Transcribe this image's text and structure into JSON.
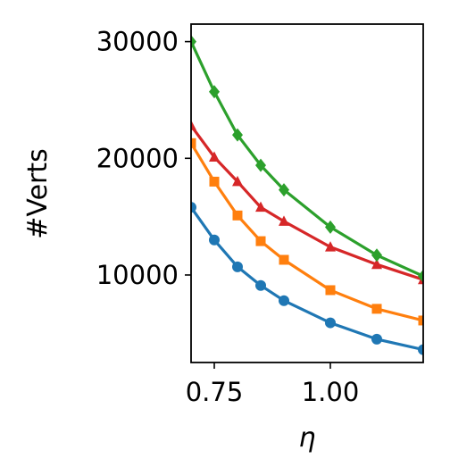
{
  "chart_data": {
    "type": "line",
    "title": "",
    "xlabel": "η",
    "ylabel": "#Verts",
    "xlim": [
      0.7,
      1.2
    ],
    "ylim": [
      2500,
      31500
    ],
    "xticks": [
      {
        "value": 0.75,
        "label": "0.75"
      },
      {
        "value": 1.0,
        "label": "1.00"
      }
    ],
    "yticks": [
      {
        "value": 10000,
        "label": "10000"
      },
      {
        "value": 20000,
        "label": "20000"
      },
      {
        "value": 30000,
        "label": "30000"
      }
    ],
    "grid": false,
    "legend": "none",
    "x": [
      0.7,
      0.75,
      0.8,
      0.85,
      0.9,
      1.0,
      1.1,
      1.2
    ],
    "series": [
      {
        "marker": "circle",
        "color": "#1f77b4",
        "values": [
          15800,
          13000,
          10700,
          9100,
          7800,
          5900,
          4500,
          3600
        ]
      },
      {
        "marker": "square",
        "color": "#ff7f0e",
        "values": [
          21300,
          18000,
          15100,
          12900,
          11300,
          8700,
          7100,
          6100
        ]
      },
      {
        "marker": "triangle",
        "color": "#d62728",
        "values": [
          22800,
          20100,
          18000,
          15800,
          14600,
          12400,
          10900,
          9600
        ]
      },
      {
        "marker": "diamond",
        "color": "#2ca02c",
        "values": [
          30000,
          25700,
          22000,
          19400,
          17300,
          14100,
          11700,
          9900
        ]
      }
    ]
  }
}
